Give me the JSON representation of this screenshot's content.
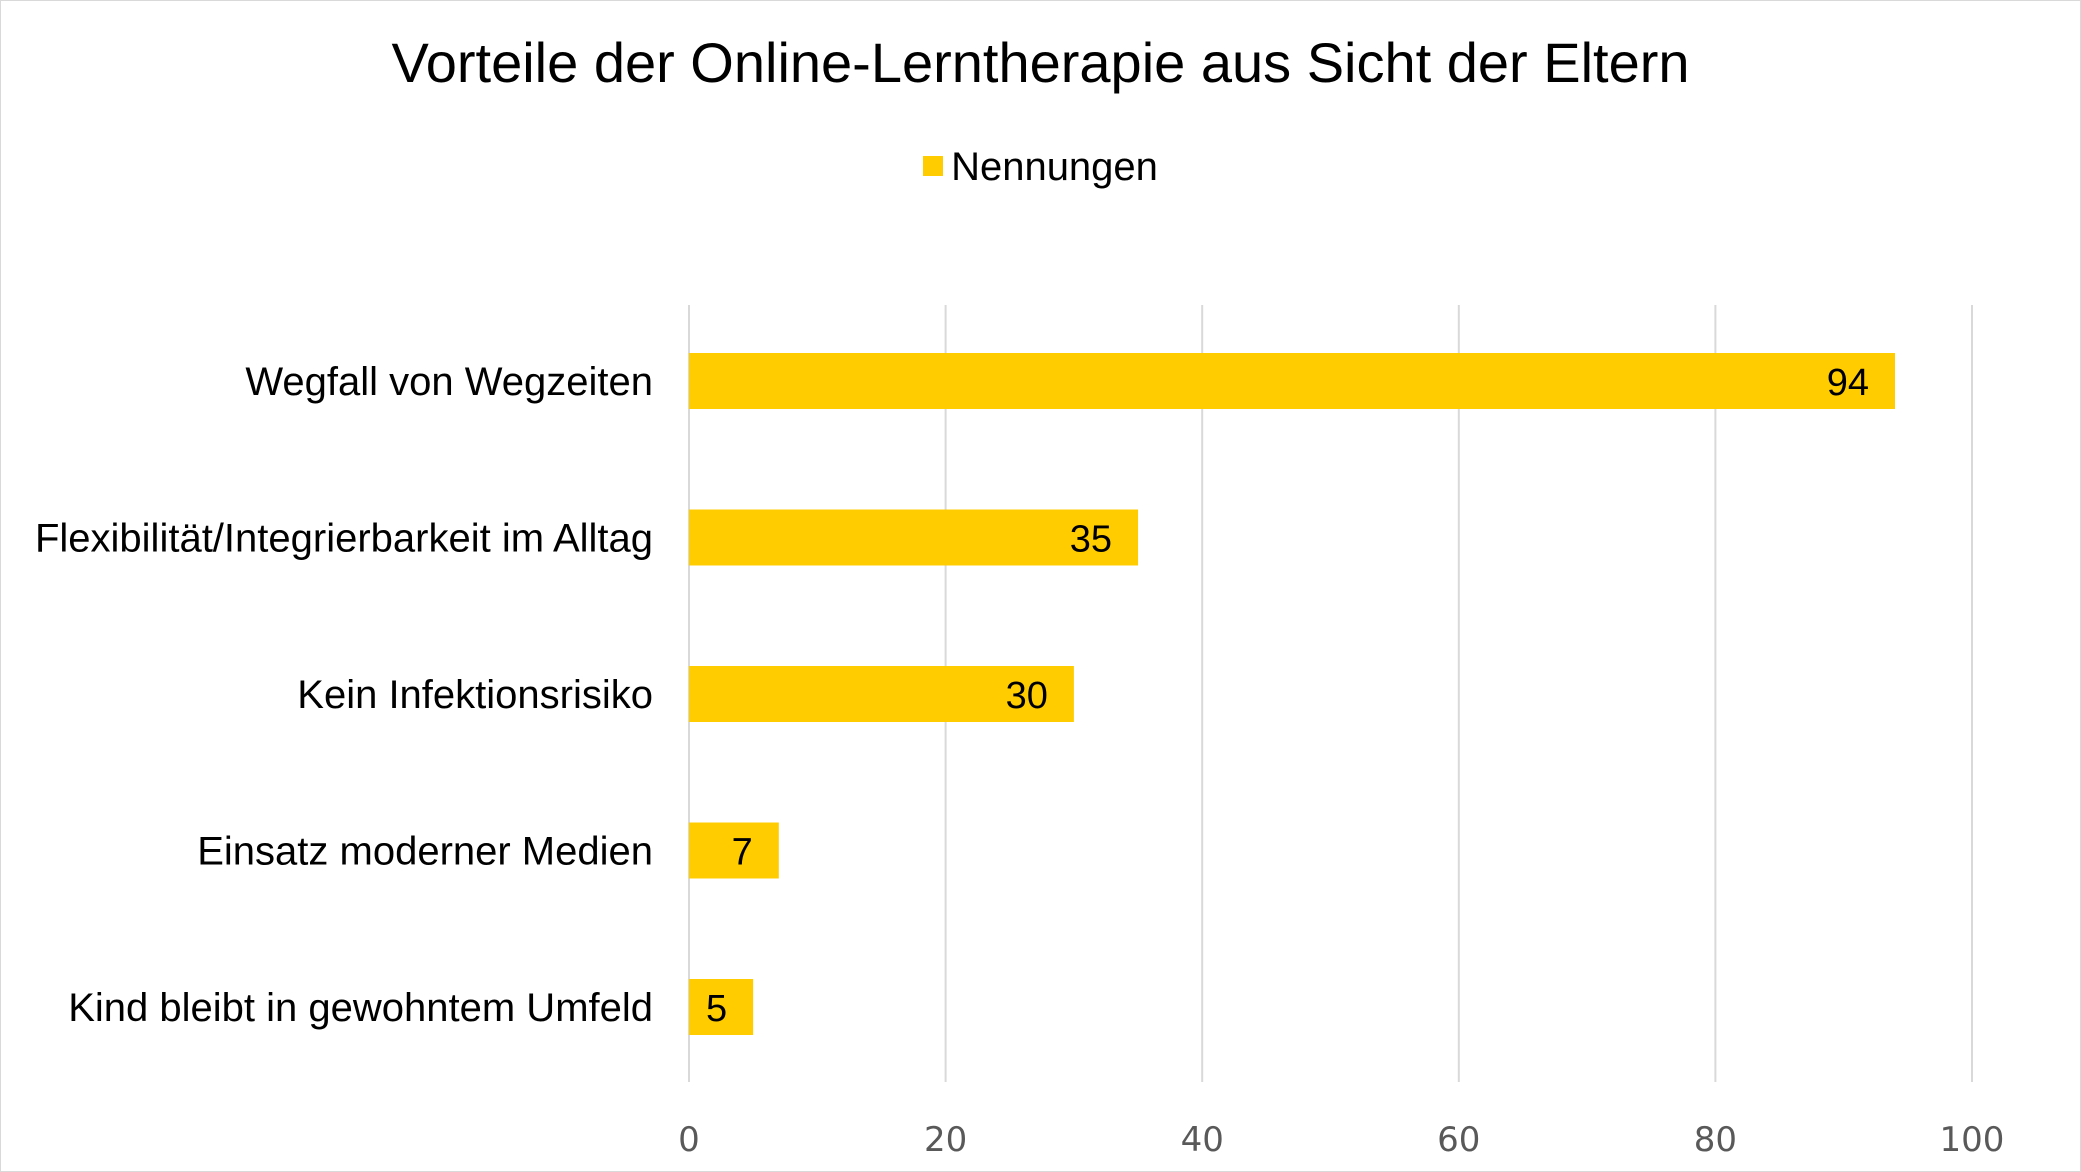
{
  "chart_data": {
    "type": "bar",
    "orientation": "horizontal",
    "title": "Vorteile der Online-Lerntherapie aus Sicht der Eltern",
    "categories": [
      "Wegfall von Wegzeiten",
      "Flexibilität/Integrierbarkeit im Alltag",
      "Kein Infektionsrisiko",
      "Einsatz moderner Medien",
      "Kind bleibt in gewohntem Umfeld"
    ],
    "series": [
      {
        "name": "Nennungen",
        "values": [
          94,
          35,
          30,
          7,
          5
        ],
        "color": "#FFCC00"
      }
    ],
    "xlim": [
      0,
      100
    ],
    "xticks": [
      0,
      20,
      40,
      60,
      80,
      100
    ],
    "grid": true,
    "legend": "top",
    "data_labels": "inside-end"
  }
}
